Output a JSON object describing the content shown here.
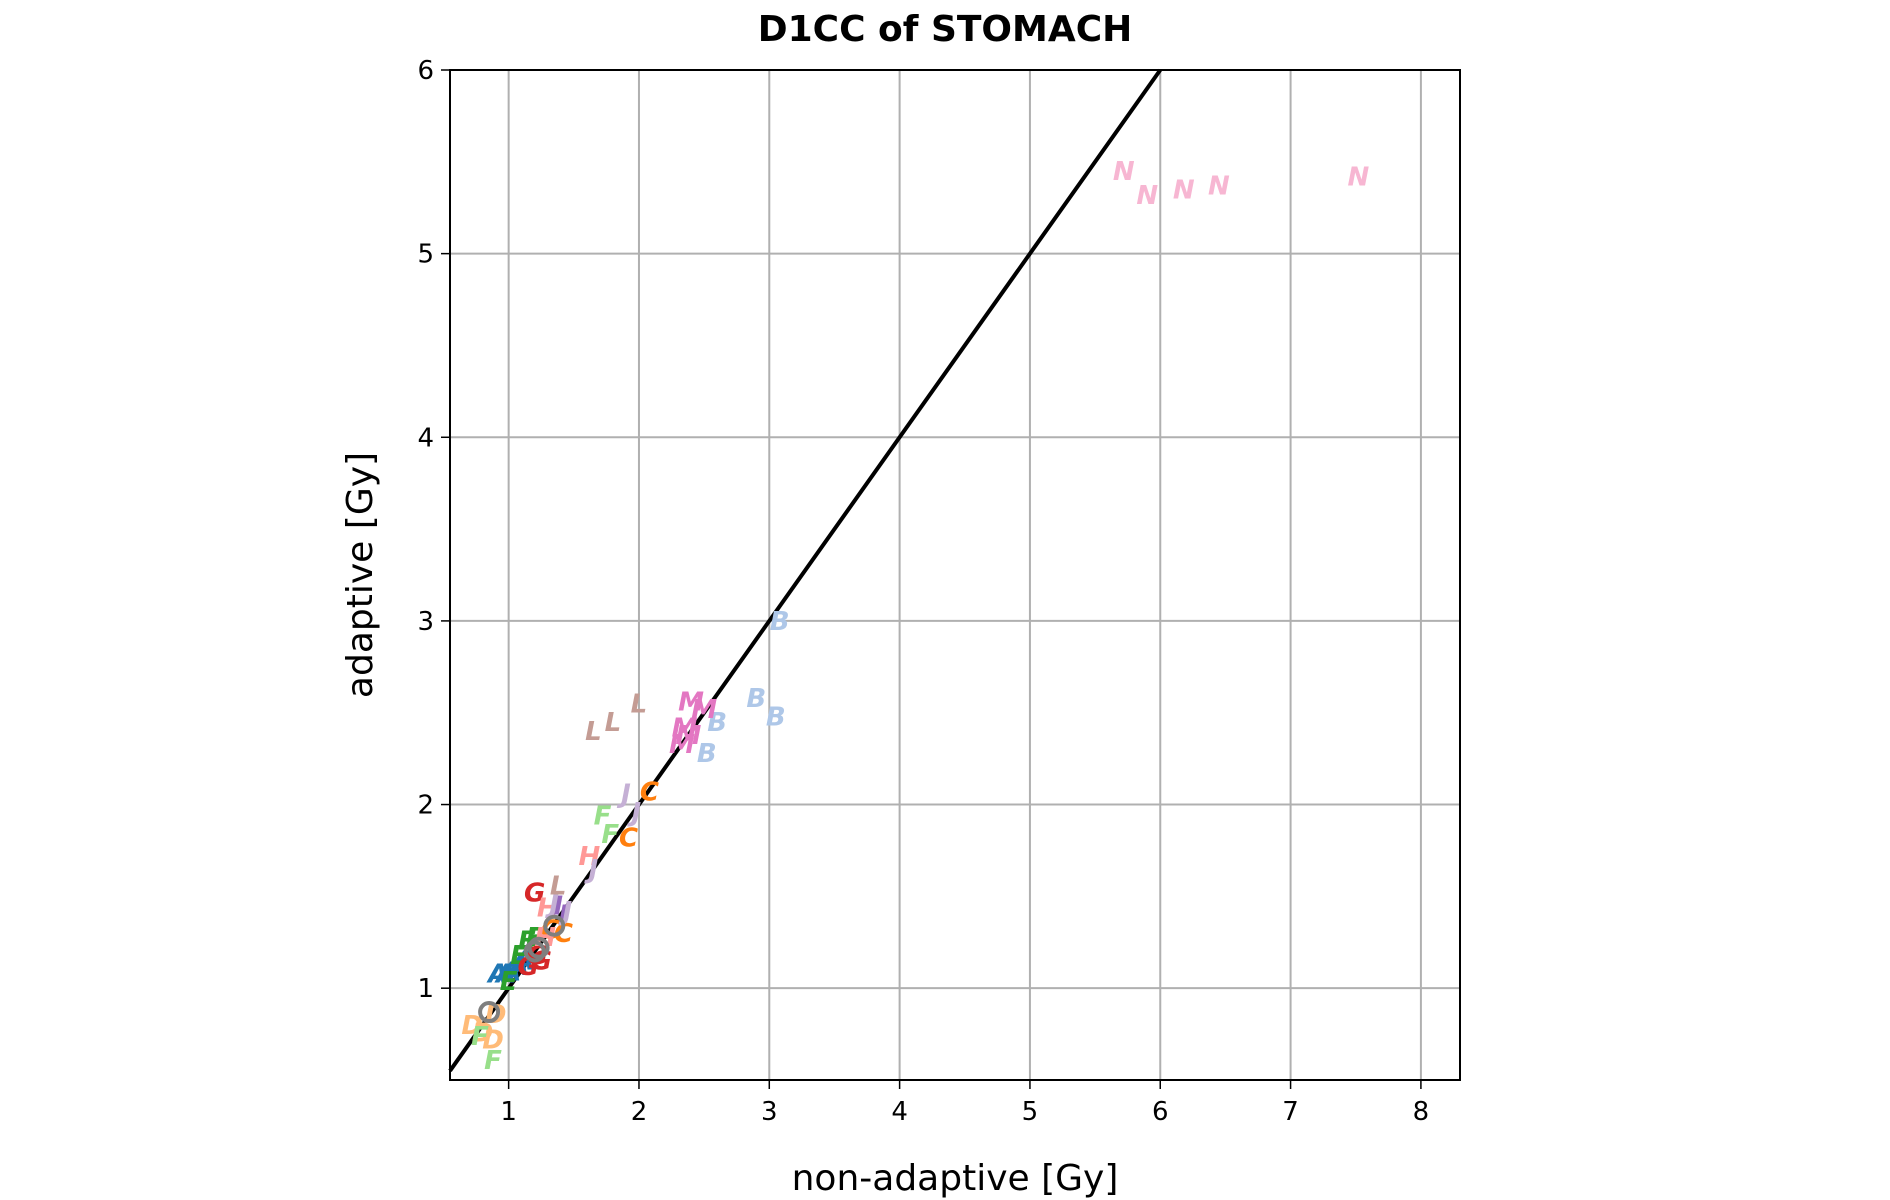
{
  "chart_data": {
    "type": "scatter",
    "title": "D1CC of STOMACH",
    "xlabel": "non-adaptive [Gy]",
    "ylabel": "adaptive [Gy]",
    "xlim": [
      0.55,
      8.3
    ],
    "ylim": [
      0.5,
      6.0
    ],
    "x_ticks": [
      "1",
      "2",
      "3",
      "4",
      "5",
      "6",
      "7",
      "8"
    ],
    "y_ticks": [
      "1",
      "2",
      "3",
      "4",
      "5",
      "6"
    ],
    "grid": true,
    "reference_line": {
      "from": [
        0.55,
        0.55
      ],
      "to": [
        6.0,
        6.0
      ],
      "color": "#000000"
    },
    "series": [
      {
        "name": "A",
        "color": "#1f77b4",
        "points": [
          [
            0.92,
            1.08
          ],
          [
            0.98,
            1.08
          ],
          [
            1.02,
            1.09
          ],
          [
            1.08,
            1.12
          ],
          [
            1.12,
            1.15
          ]
        ]
      },
      {
        "name": "B",
        "color": "#aec7e8",
        "points": [
          [
            3.08,
            3.0
          ],
          [
            2.9,
            2.58
          ],
          [
            3.05,
            2.48
          ],
          [
            2.6,
            2.45
          ],
          [
            2.52,
            2.28
          ]
        ]
      },
      {
        "name": "C",
        "color": "#ff7f0e",
        "points": [
          [
            2.08,
            2.07
          ],
          [
            1.92,
            1.82
          ],
          [
            1.42,
            1.3
          ],
          [
            1.32,
            1.32
          ]
        ]
      },
      {
        "name": "D",
        "color": "#ffbb78",
        "points": [
          [
            0.72,
            0.8
          ],
          [
            0.8,
            0.76
          ],
          [
            0.88,
            0.72
          ],
          [
            0.9,
            0.86
          ]
        ]
      },
      {
        "name": "E",
        "color": "#2ca02c",
        "points": [
          [
            1.0,
            1.04
          ],
          [
            1.08,
            1.18
          ],
          [
            1.14,
            1.26
          ],
          [
            1.2,
            1.28
          ]
        ]
      },
      {
        "name": "F",
        "color": "#98df8a",
        "points": [
          [
            1.72,
            1.94
          ],
          [
            1.78,
            1.84
          ],
          [
            0.78,
            0.74
          ],
          [
            0.88,
            0.61
          ]
        ]
      },
      {
        "name": "G",
        "color": "#d62728",
        "points": [
          [
            1.2,
            1.52
          ],
          [
            1.15,
            1.12
          ],
          [
            1.25,
            1.15
          ],
          [
            1.22,
            1.18
          ]
        ]
      },
      {
        "name": "H",
        "color": "#ff9896",
        "points": [
          [
            1.62,
            1.72
          ],
          [
            1.3,
            1.44
          ],
          [
            1.28,
            1.28
          ]
        ]
      },
      {
        "name": "I",
        "color": "#9467bd",
        "points": [
          [
            1.38,
            1.45
          ],
          [
            1.42,
            1.4
          ]
        ]
      },
      {
        "name": "J",
        "color": "#c5b0d5",
        "points": [
          [
            1.9,
            2.06
          ],
          [
            1.98,
            1.96
          ],
          [
            1.65,
            1.65
          ],
          [
            1.45,
            1.42
          ],
          [
            1.35,
            1.46
          ]
        ]
      },
      {
        "name": "L",
        "color": "#c49c94",
        "points": [
          [
            1.65,
            2.4
          ],
          [
            1.8,
            2.45
          ],
          [
            2.0,
            2.55
          ],
          [
            1.38,
            1.56
          ]
        ]
      },
      {
        "name": "M",
        "color": "#e377c2",
        "points": [
          [
            2.4,
            2.56
          ],
          [
            2.5,
            2.52
          ],
          [
            2.35,
            2.42
          ],
          [
            2.38,
            2.38
          ],
          [
            2.33,
            2.33
          ]
        ]
      },
      {
        "name": "N",
        "color": "#f7b6d2",
        "points": [
          [
            5.72,
            5.45
          ],
          [
            5.9,
            5.32
          ],
          [
            6.18,
            5.35
          ],
          [
            6.45,
            5.37
          ],
          [
            7.52,
            5.42
          ]
        ]
      },
      {
        "name": "O",
        "color": "#7f7f7f",
        "points": [
          [
            0.85,
            0.87
          ],
          [
            1.2,
            1.2
          ],
          [
            1.23,
            1.22
          ],
          [
            1.35,
            1.34
          ]
        ]
      }
    ]
  }
}
